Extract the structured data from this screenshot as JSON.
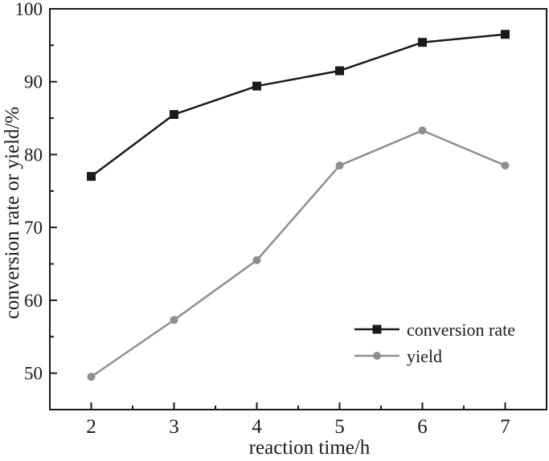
{
  "figure": {
    "background": "#ffffff",
    "ink_color": "#1a1a1a",
    "gray_color": "#8f8f8f"
  },
  "chart_data": {
    "type": "line",
    "title": "",
    "xlabel": "reaction time/h",
    "ylabel": "conversion rate or yield/%",
    "x": [
      2,
      3,
      4,
      5,
      6,
      7
    ],
    "series": [
      {
        "name": "conversion rate",
        "values": [
          77.0,
          85.5,
          89.4,
          91.5,
          95.4,
          96.5
        ],
        "color": "#1a1a1a",
        "marker": "square"
      },
      {
        "name": "yield",
        "values": [
          49.5,
          57.3,
          65.5,
          78.5,
          83.3,
          78.5
        ],
        "color": "#8f8f8f",
        "marker": "circle"
      }
    ],
    "xlim": [
      1.5,
      7.5
    ],
    "ylim": [
      45,
      100
    ],
    "x_major_ticks": [
      2,
      3,
      4,
      5,
      6,
      7
    ],
    "x_minor_ticks": [
      2.5,
      3.5,
      4.5,
      5.5,
      6.5
    ],
    "y_major_ticks": [
      50,
      60,
      70,
      80,
      90,
      100
    ],
    "y_minor_ticks": [
      55,
      65,
      75,
      85,
      95
    ],
    "grid": false,
    "frame": "full-box",
    "tick_direction": "in",
    "legend_position": "inside-lower-right"
  }
}
